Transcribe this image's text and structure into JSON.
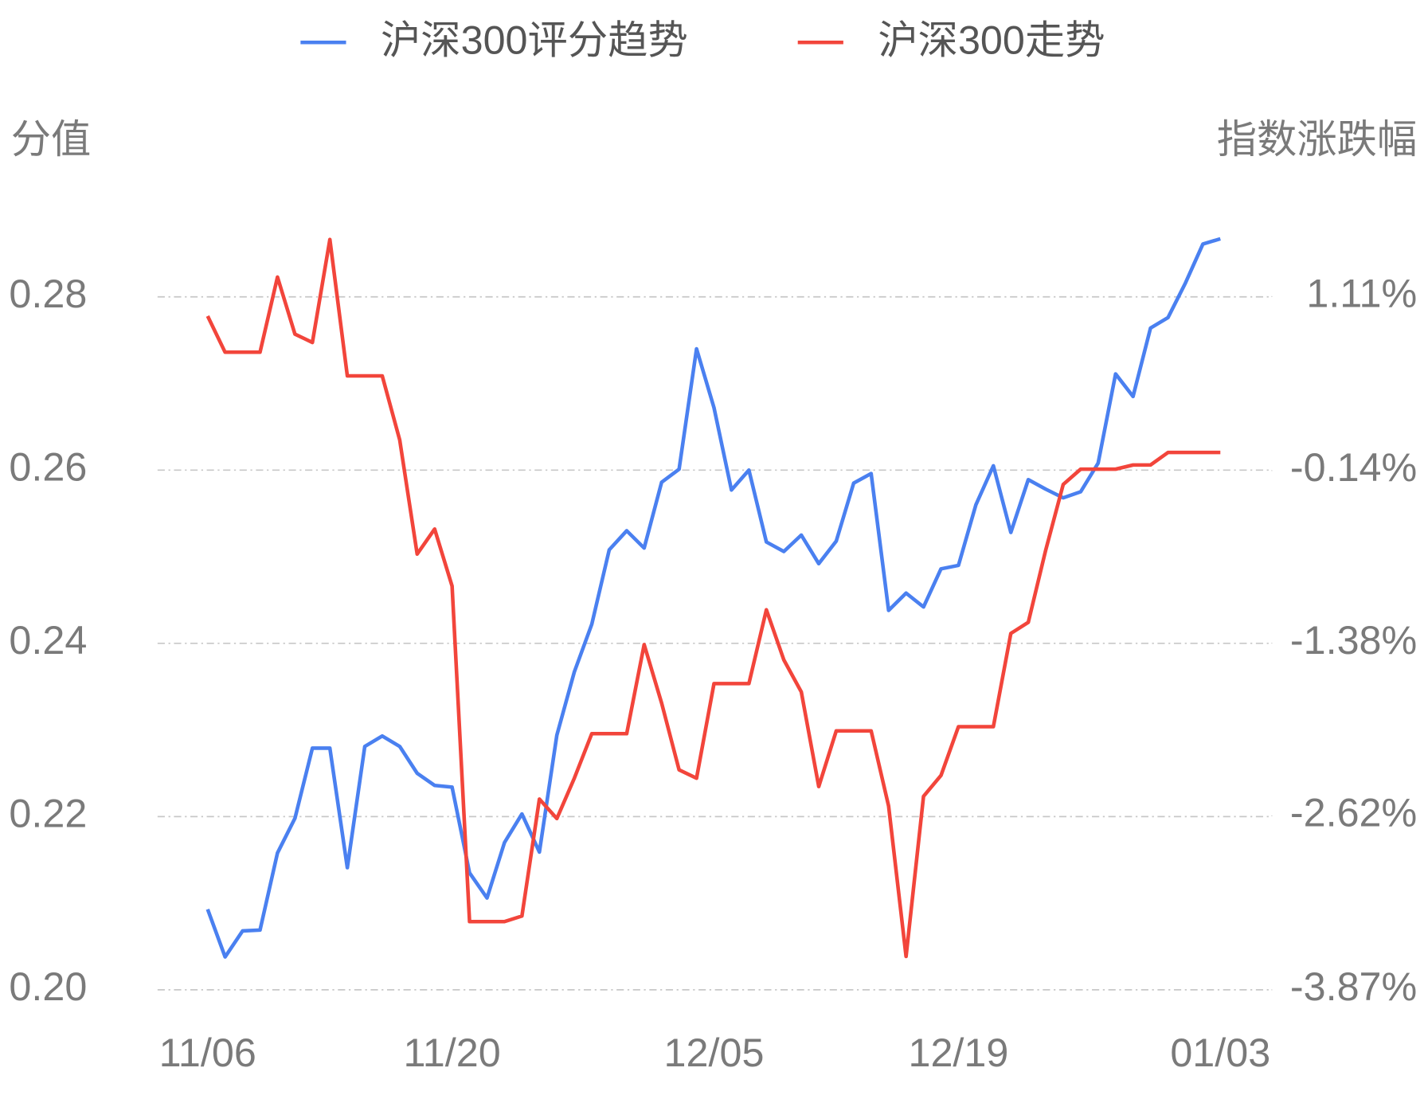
{
  "chart_data": {
    "type": "line",
    "y_label": "分值",
    "y2_label": "指数涨跌幅",
    "legend": "top",
    "grid": true,
    "categories": [
      "11/06",
      null,
      null,
      null,
      null,
      null,
      null,
      null,
      null,
      null,
      null,
      null,
      null,
      null,
      "11/20",
      null,
      null,
      null,
      null,
      null,
      null,
      null,
      null,
      null,
      null,
      null,
      null,
      null,
      null,
      "12/05",
      null,
      null,
      null,
      null,
      null,
      null,
      null,
      null,
      null,
      null,
      null,
      null,
      null,
      "12/19",
      null,
      null,
      null,
      null,
      null,
      null,
      null,
      null,
      null,
      null,
      null,
      null,
      null,
      null,
      "01/03"
    ],
    "ylim": [
      0.2,
      0.29
    ],
    "yticks": [
      {
        "value": 0.2,
        "label": "0.20"
      },
      0.22,
      0.24,
      0.26,
      0.28
    ],
    "y2lim": [
      -3.87,
      1.73
    ],
    "y2ticks": [
      {
        "value": -3.87,
        "label": "-3.87%"
      },
      {
        "value": -2.62,
        "label": "-2.62%"
      },
      {
        "value": -1.38,
        "label": "-1.38%"
      },
      {
        "value": -0.14,
        "label": "-0.14%"
      },
      {
        "value": 1.11,
        "label": "1.11%"
      }
    ],
    "series": [
      {
        "name": "沪深300评分趋势",
        "color": "#4a80f0",
        "values": [
          0.2093,
          0.2038,
          0.2068,
          0.2069,
          0.2158,
          0.2198,
          0.2279,
          0.2279,
          0.2141,
          0.2281,
          0.2293,
          0.2281,
          0.225,
          0.2236,
          0.2234,
          0.2135,
          0.2106,
          0.217,
          0.2203,
          0.2159,
          0.2294,
          0.2367,
          0.2422,
          0.2508,
          0.253,
          0.251,
          0.2586,
          0.2601,
          0.274,
          0.2672,
          0.2577,
          0.26,
          0.2517,
          0.2506,
          0.2525,
          0.2492,
          0.2518,
          0.2585,
          0.2596,
          0.2438,
          0.2458,
          0.2442,
          0.2486,
          0.249,
          0.256,
          0.2605,
          0.2528,
          0.2589,
          0.2578,
          0.2568,
          0.2575,
          0.2608,
          0.2711,
          0.2685,
          0.2764,
          0.2776,
          0.2816,
          0.2861,
          0.2867
        ]
      },
      {
        "name": "沪深300走势",
        "color": "#f2453b",
        "axis": "y2",
        "values": [
          0.97,
          0.71,
          0.71,
          0.71,
          1.25,
          0.84,
          0.78,
          1.52,
          0.54,
          0.54,
          0.54,
          0.08,
          -0.74,
          -0.56,
          -0.97,
          -3.38,
          -3.38,
          -3.38,
          -3.34,
          -2.5,
          -2.64,
          -2.35,
          -2.03,
          -2.03,
          -2.03,
          -1.39,
          -1.81,
          -2.29,
          -2.35,
          -1.67,
          -1.67,
          -1.67,
          -1.14,
          -1.5,
          -1.73,
          -2.41,
          -2.01,
          -2.01,
          -2.01,
          -2.55,
          -3.63,
          -2.48,
          -2.33,
          -1.98,
          -1.98,
          -1.98,
          -1.31,
          -1.23,
          -0.71,
          -0.24,
          -0.13,
          -0.13,
          -0.13,
          -0.1,
          -0.1,
          -0.01,
          -0.01,
          -0.01,
          -0.01
        ]
      }
    ]
  }
}
